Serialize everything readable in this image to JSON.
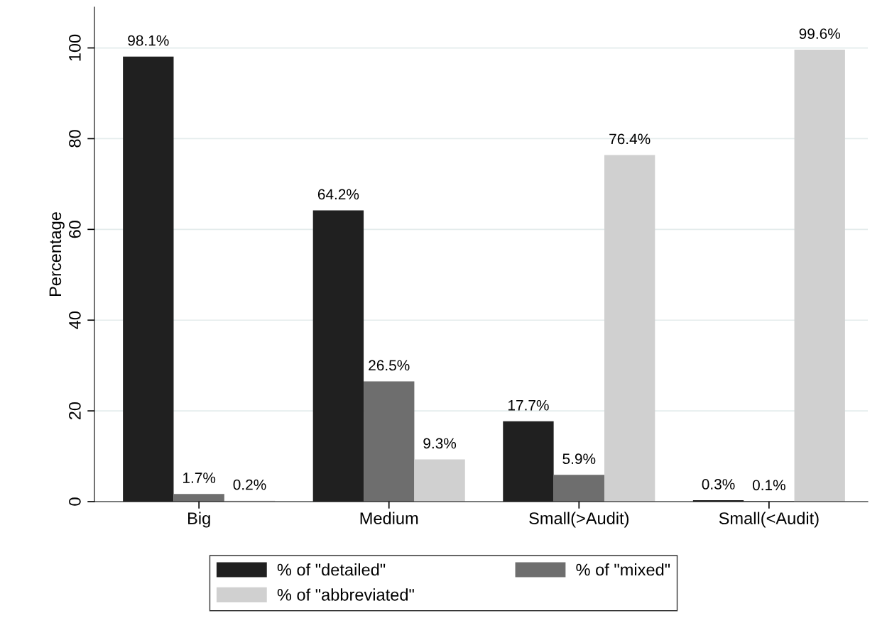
{
  "chart_data": {
    "type": "bar",
    "categories": [
      "Big",
      "Medium",
      "Small(>Audit)",
      "Small(<Audit)"
    ],
    "ylabel": "Percentage",
    "ylim": [
      0,
      109
    ],
    "yticks": [
      0,
      20,
      40,
      60,
      80,
      100
    ],
    "grid": "y",
    "legend": "bottom",
    "series": [
      {
        "name": "% of \"detailed\"",
        "color": "#202020",
        "values": [
          98.1,
          64.2,
          17.7,
          0.3
        ],
        "value_labels": [
          "98.1%",
          "64.2%",
          "17.7%",
          "0.3%"
        ]
      },
      {
        "name": "% of \"mixed\"",
        "color": "#6e6e6e",
        "values": [
          1.7,
          26.5,
          5.9,
          0.1
        ],
        "value_labels": [
          "1.7%",
          "26.5%",
          "5.9%",
          "0.1%"
        ]
      },
      {
        "name": "% of \"abbreviated\"",
        "color": "#d0d0d0",
        "values": [
          0.2,
          9.3,
          76.4,
          99.6
        ],
        "value_labels": [
          "0.2%",
          "9.3%",
          "76.4%",
          "99.6%"
        ]
      }
    ]
  }
}
